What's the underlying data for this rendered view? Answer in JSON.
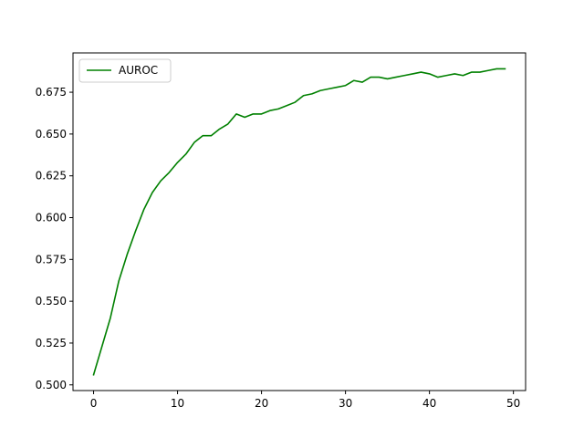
{
  "chart_data": {
    "type": "line",
    "title": "",
    "xlabel": "",
    "ylabel": "",
    "xlim": [
      -2.45,
      51.45
    ],
    "ylim": [
      0.4966,
      0.6985
    ],
    "xticks": [
      0,
      10,
      20,
      30,
      40,
      50
    ],
    "yticks": [
      0.5,
      0.525,
      0.55,
      0.575,
      0.6,
      0.625,
      0.65,
      0.675
    ],
    "yticks_labels": [
      "0.500",
      "0.525",
      "0.550",
      "0.575",
      "0.600",
      "0.625",
      "0.650",
      "0.675"
    ],
    "grid": false,
    "legend": {
      "position": "top-left"
    },
    "series": [
      {
        "name": "AUROC",
        "color": "#008000",
        "x": [
          0,
          1,
          2,
          3,
          4,
          5,
          6,
          7,
          8,
          9,
          10,
          11,
          12,
          13,
          14,
          15,
          16,
          17,
          18,
          19,
          20,
          21,
          22,
          23,
          24,
          25,
          26,
          27,
          28,
          29,
          30,
          31,
          32,
          33,
          34,
          35,
          36,
          37,
          38,
          39,
          40,
          41,
          42,
          43,
          44,
          45,
          46,
          47,
          48,
          49
        ],
        "values": [
          0.506,
          0.523,
          0.54,
          0.562,
          0.578,
          0.592,
          0.605,
          0.615,
          0.622,
          0.627,
          0.633,
          0.638,
          0.645,
          0.649,
          0.649,
          0.653,
          0.656,
          0.662,
          0.66,
          0.662,
          0.662,
          0.664,
          0.665,
          0.667,
          0.669,
          0.673,
          0.674,
          0.676,
          0.677,
          0.678,
          0.679,
          0.682,
          0.681,
          0.684,
          0.684,
          0.683,
          0.684,
          0.685,
          0.686,
          0.687,
          0.686,
          0.684,
          0.685,
          0.686,
          0.685,
          0.687,
          0.687,
          0.688,
          0.689,
          0.689
        ]
      }
    ]
  }
}
